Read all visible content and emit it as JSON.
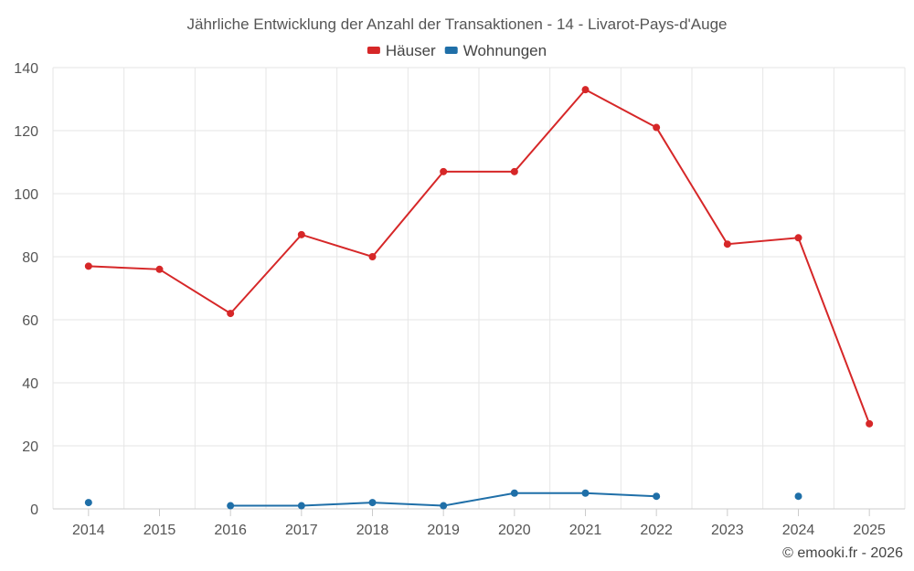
{
  "chart_data": {
    "type": "line",
    "title": "Jährliche Entwicklung der Anzahl der Transaktionen - 14 - Livarot-Pays-d'Auge",
    "categories": [
      "2014",
      "2015",
      "2016",
      "2017",
      "2018",
      "2019",
      "2020",
      "2021",
      "2022",
      "2023",
      "2024",
      "2025"
    ],
    "ylim": [
      0,
      140
    ],
    "yticks": [
      0,
      20,
      40,
      60,
      80,
      100,
      120,
      140
    ],
    "grid": true,
    "legend_position": "top",
    "series": [
      {
        "name": "Häuser",
        "color": "#d62728",
        "values": [
          77,
          76,
          62,
          87,
          80,
          107,
          107,
          133,
          121,
          84,
          86,
          27
        ]
      },
      {
        "name": "Wohnungen",
        "color": "#1f6fa8",
        "values": [
          2,
          null,
          1,
          1,
          2,
          1,
          5,
          5,
          4,
          null,
          4,
          null
        ]
      }
    ]
  },
  "credit": "© emooki.fr - 2026"
}
